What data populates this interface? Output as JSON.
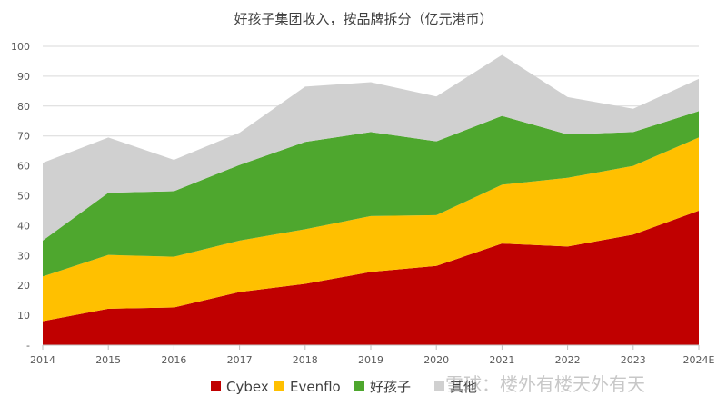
{
  "chart_data": {
    "type": "area",
    "stacked": true,
    "title": "好孩子集团收入，按品牌拆分（亿元港币）",
    "x": [
      "2014",
      "2015",
      "2016",
      "2017",
      "2018",
      "2019",
      "2020",
      "2021",
      "2022",
      "2023",
      "2024E"
    ],
    "ylim": [
      0,
      100
    ],
    "yticks": [
      "-",
      "10",
      "20",
      "30",
      "40",
      "50",
      "60",
      "70",
      "80",
      "90",
      "100"
    ],
    "grid": true,
    "legend_position": "bottom",
    "series": [
      {
        "name": "Cybex",
        "color": "#c00000",
        "values": [
          8,
          12.2,
          12.6,
          17.8,
          20.5,
          24.5,
          26.5,
          34,
          33,
          37,
          45
        ]
      },
      {
        "name": "Evenflo",
        "color": "#ffc000",
        "values": [
          15,
          18,
          17,
          17.2,
          18.3,
          18.7,
          17,
          19.7,
          23,
          23,
          24.5
        ]
      },
      {
        "name": "好孩子",
        "color": "#4ea72e",
        "values": [
          12,
          20.8,
          21.9,
          25.3,
          29.2,
          28.1,
          24.7,
          23,
          14.5,
          11.3,
          8.8
        ]
      },
      {
        "name": "其他",
        "color": "#d0d0d0",
        "values": [
          26,
          18.5,
          10.5,
          10.8,
          18.5,
          16.7,
          15,
          20.4,
          12.5,
          7.8,
          10.8
        ]
      }
    ]
  },
  "watermark": {
    "text": "雪球：楼外有楼天外有天"
  }
}
